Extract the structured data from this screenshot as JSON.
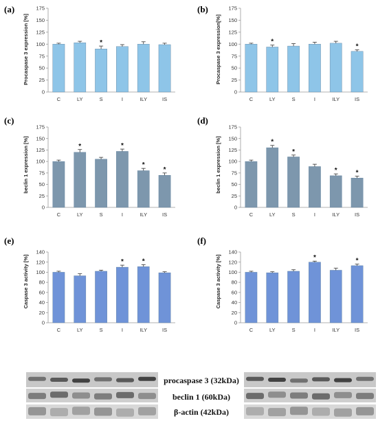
{
  "chart_data": [
    {
      "panel": "(a)",
      "type": "bar",
      "categories": [
        "C",
        "LY",
        "S",
        "I",
        "ILY",
        "IS"
      ],
      "values": [
        100,
        103,
        90,
        95,
        100,
        99
      ],
      "errors": [
        2,
        3,
        6,
        4,
        5,
        3
      ],
      "significant": [
        false,
        false,
        true,
        false,
        false,
        false
      ],
      "ylabel": "Procaspase 3 expression [%]",
      "ylim": [
        0,
        175
      ],
      "yticks": [
        0,
        25,
        50,
        75,
        100,
        125,
        150,
        175
      ],
      "color": "#8ec5e8"
    },
    {
      "panel": "(b)",
      "type": "bar",
      "categories": [
        "C",
        "LY",
        "S",
        "I",
        "ILY",
        "IS"
      ],
      "values": [
        100,
        94,
        96,
        100,
        102,
        85
      ],
      "errors": [
        2,
        4,
        5,
        4,
        4,
        3
      ],
      "significant": [
        false,
        true,
        false,
        false,
        false,
        true
      ],
      "ylabel": "Procaspase 3 expression[%]",
      "ylim": [
        0,
        175
      ],
      "yticks": [
        0,
        25,
        50,
        75,
        100,
        125,
        150,
        175
      ],
      "color": "#8ec5e8"
    },
    {
      "panel": "(c)",
      "type": "bar",
      "categories": [
        "C",
        "LY",
        "S",
        "I",
        "ILY",
        "IS"
      ],
      "values": [
        100,
        120,
        105,
        122,
        80,
        70
      ],
      "errors": [
        3,
        6,
        4,
        5,
        5,
        5
      ],
      "significant": [
        false,
        true,
        false,
        true,
        true,
        true
      ],
      "ylabel": "beclin 1 expression [%]",
      "ylim": [
        0,
        175
      ],
      "yticks": [
        0,
        25,
        50,
        75,
        100,
        125,
        150,
        175
      ],
      "color": "#7d97ad"
    },
    {
      "panel": "(d)",
      "type": "bar",
      "categories": [
        "C",
        "LY",
        "S",
        "I",
        "ILY",
        "IS"
      ],
      "values": [
        100,
        130,
        110,
        89,
        69,
        64
      ],
      "errors": [
        3,
        5,
        4,
        5,
        4,
        4
      ],
      "significant": [
        false,
        true,
        true,
        false,
        true,
        true
      ],
      "ylabel": "beclin 1 expression [%]",
      "ylim": [
        0,
        175
      ],
      "yticks": [
        0,
        25,
        50,
        75,
        100,
        125,
        150,
        175
      ],
      "color": "#7d97ad"
    },
    {
      "panel": "(e)",
      "type": "bar",
      "categories": [
        "C",
        "LY",
        "S",
        "I",
        "ILY",
        "IS"
      ],
      "values": [
        100,
        93,
        102,
        110,
        111,
        99
      ],
      "errors": [
        2,
        4,
        2,
        4,
        4,
        2
      ],
      "significant": [
        false,
        false,
        false,
        true,
        true,
        false
      ],
      "ylabel": "Caspase 3 activity [%]",
      "ylim": [
        0,
        140
      ],
      "yticks": [
        0,
        20,
        40,
        60,
        80,
        100,
        120,
        140
      ],
      "color": "#6f93d8"
    },
    {
      "panel": "(f)",
      "type": "bar",
      "categories": [
        "C",
        "LY",
        "S",
        "I",
        "ILY",
        "IS"
      ],
      "values": [
        100,
        99,
        102,
        120,
        104,
        113
      ],
      "errors": [
        2,
        2,
        3,
        2,
        4,
        3
      ],
      "significant": [
        false,
        false,
        false,
        true,
        false,
        true
      ],
      "ylabel": "Caspase 3 activity [%]",
      "ylim": [
        0,
        140
      ],
      "yticks": [
        0,
        20,
        40,
        60,
        80,
        100,
        120,
        140
      ],
      "color": "#6f93d8"
    }
  ],
  "blot": {
    "labels": [
      "procaspase 3 (32kDa)",
      "beclin 1 (60kDa)",
      "β-actin (42kDa)"
    ]
  }
}
